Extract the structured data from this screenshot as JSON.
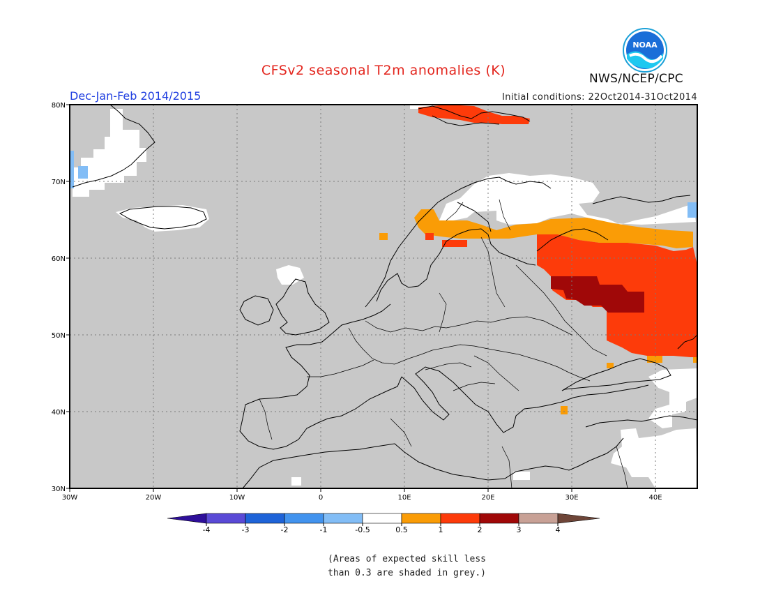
{
  "header": {
    "title": "CFSv2 seasonal T2m anomalies (K)",
    "org": "NWS/NCEP/CPC",
    "logo_text": "NOAA",
    "season": "Dec-Jan-Feb 2014/2015",
    "initial_conditions": "Initial conditions: 22Oct2014-31Oct2014"
  },
  "map": {
    "lon_range": [
      -30,
      45
    ],
    "lat_range": [
      30,
      80
    ],
    "lon_ticks": [
      "30W",
      "20W",
      "10W",
      "0",
      "10E",
      "20E",
      "30E",
      "40E"
    ],
    "lat_ticks": [
      "80N",
      "70N",
      "60N",
      "50N",
      "40N",
      "30N"
    ],
    "background_color": "#c8c8c8"
  },
  "colorbar": {
    "labels": [
      "-4",
      "-3",
      "-2",
      "-1",
      "-0.5",
      "0.5",
      "1",
      "2",
      "3",
      "4"
    ],
    "colors": [
      "#2e0f9a",
      "#5a4ad6",
      "#1e63d8",
      "#4293ee",
      "#82bdf6",
      "#ffffff",
      "#fa9c06",
      "#fd3b0a",
      "#a00808",
      "#c8a196",
      "#6e4538"
    ]
  },
  "note": {
    "line1": "(Areas of expected skill less",
    "line2": "than 0.3 are shaded in grey.)"
  }
}
